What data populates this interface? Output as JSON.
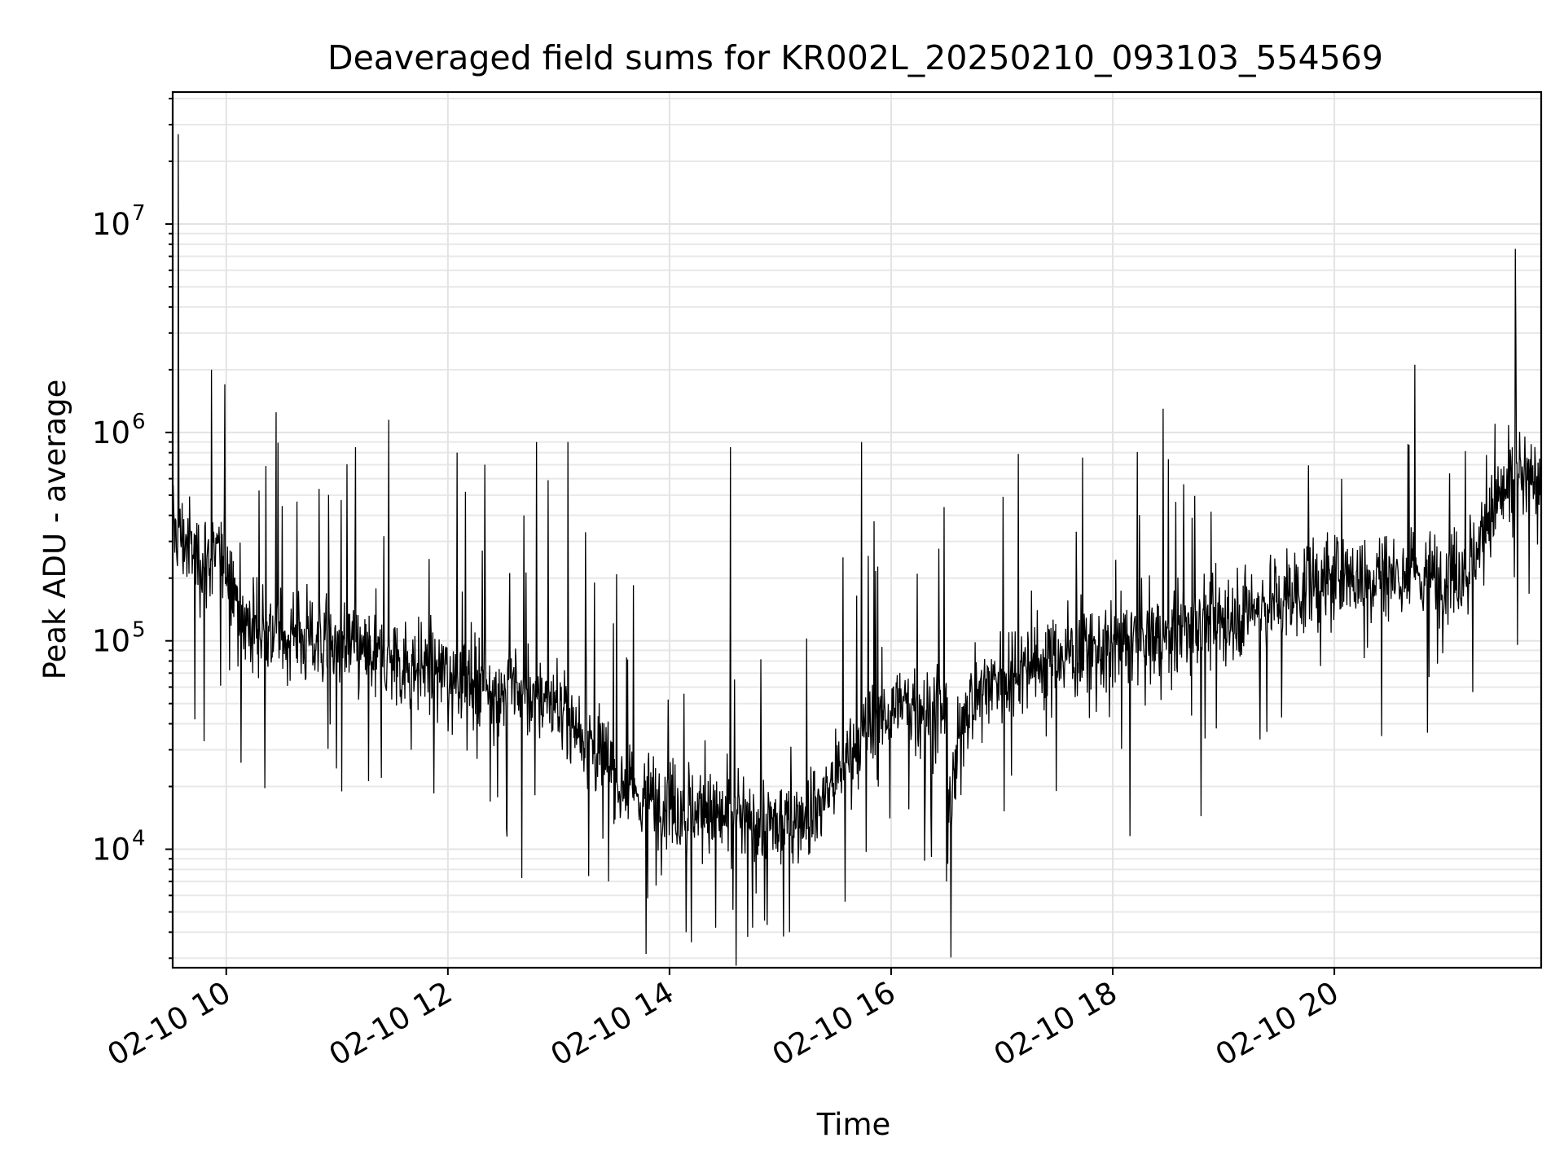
{
  "chart_data": {
    "type": "line",
    "title": "Deaveraged field sums for KR002L_20250210_093103_554569",
    "xlabel": "Time",
    "ylabel": "Peak ADU - average",
    "yscale": "log",
    "grid": true,
    "grid_minor": true,
    "xlim": [
      "2025-02-10 09:31",
      "2025-02-10 21:52"
    ],
    "ylim": [
      2700,
      43000000
    ],
    "x_ticks": [
      {
        "value": "2025-02-10 10:00",
        "label": "02-10 10"
      },
      {
        "value": "2025-02-10 12:00",
        "label": "02-10 12"
      },
      {
        "value": "2025-02-10 14:00",
        "label": "02-10 14"
      },
      {
        "value": "2025-02-10 16:00",
        "label": "02-10 16"
      },
      {
        "value": "2025-02-10 18:00",
        "label": "02-10 18"
      },
      {
        "value": "2025-02-10 20:00",
        "label": "02-10 20"
      }
    ],
    "y_ticks": [
      {
        "value": 10000,
        "base": "10",
        "exp": "4"
      },
      {
        "value": 100000,
        "base": "10",
        "exp": "5"
      },
      {
        "value": 1000000,
        "base": "10",
        "exp": "6"
      },
      {
        "value": 10000000,
        "base": "10",
        "exp": "7"
      }
    ],
    "series": [
      {
        "color": "#000000",
        "baseline_x": [
          "2025-02-10 09:31",
          "2025-02-10 09:45",
          "2025-02-10 10:00",
          "2025-02-10 10:10",
          "2025-02-10 10:30",
          "2025-02-10 11:00",
          "2025-02-10 11:30",
          "2025-02-10 12:00",
          "2025-02-10 12:30",
          "2025-02-10 13:00",
          "2025-02-10 13:20",
          "2025-02-10 13:40",
          "2025-02-10 14:00",
          "2025-02-10 14:30",
          "2025-02-10 15:00",
          "2025-02-10 15:20",
          "2025-02-10 15:40",
          "2025-02-10 16:00",
          "2025-02-10 16:30",
          "2025-02-10 16:32",
          "2025-02-10 16:40",
          "2025-02-10 17:00",
          "2025-02-10 17:30",
          "2025-02-10 18:00",
          "2025-02-10 18:30",
          "2025-02-10 19:00",
          "2025-02-10 19:30",
          "2025-02-10 20:00",
          "2025-02-10 20:30",
          "2025-02-10 21:00",
          "2025-02-10 21:15",
          "2025-02-10 21:30",
          "2025-02-10 21:52"
        ],
        "baseline_y": [
          350000,
          250000,
          250000,
          120000,
          110000,
          95000,
          80000,
          70000,
          60000,
          50000,
          30000,
          18000,
          17000,
          14000,
          13000,
          16000,
          30000,
          50000,
          45000,
          15000,
          50000,
          70000,
          85000,
          95000,
          105000,
          130000,
          160000,
          200000,
          210000,
          200000,
          250000,
          500000,
          650000
        ],
        "spikes": [
          {
            "x": "2025-02-10 09:34",
            "y": 27000000
          },
          {
            "x": "2025-02-10 09:52",
            "y": 2000000
          },
          {
            "x": "2025-02-10 10:27",
            "y": 1250000
          },
          {
            "x": "2025-02-10 11:28",
            "y": 1150000
          },
          {
            "x": "2025-02-10 11:10",
            "y": 850000
          },
          {
            "x": "2025-02-10 12:05",
            "y": 800000
          },
          {
            "x": "2025-02-10 12:20",
            "y": 700000
          },
          {
            "x": "2025-02-10 12:48",
            "y": 900000
          },
          {
            "x": "2025-02-10 13:05",
            "y": 900000
          },
          {
            "x": "2025-02-10 14:33",
            "y": 850000
          },
          {
            "x": "2025-02-10 15:44",
            "y": 900000
          },
          {
            "x": "2025-02-10 21:38",
            "y": 7600000
          },
          {
            "x": "2025-02-10 21:27",
            "y": 1100000
          }
        ],
        "dips": [
          {
            "x": "2025-02-10 09:43",
            "y": 42000
          },
          {
            "x": "2025-02-10 09:48",
            "y": 33000
          },
          {
            "x": "2025-02-10 10:08",
            "y": 26000
          },
          {
            "x": "2025-02-10 11:24",
            "y": 22000
          },
          {
            "x": "2025-02-10 12:32",
            "y": 11500
          },
          {
            "x": "2025-02-10 13:27",
            "y": 7000
          },
          {
            "x": "2025-02-10 14:09",
            "y": 4000
          },
          {
            "x": "2025-02-10 14:25",
            "y": 4200
          },
          {
            "x": "2025-02-10 14:45",
            "y": 4200
          },
          {
            "x": "2025-02-10 15:05",
            "y": 4000
          },
          {
            "x": "2025-02-10 16:30",
            "y": 7000
          },
          {
            "x": "2025-02-10 18:50",
            "y": 34000
          }
        ]
      }
    ]
  }
}
